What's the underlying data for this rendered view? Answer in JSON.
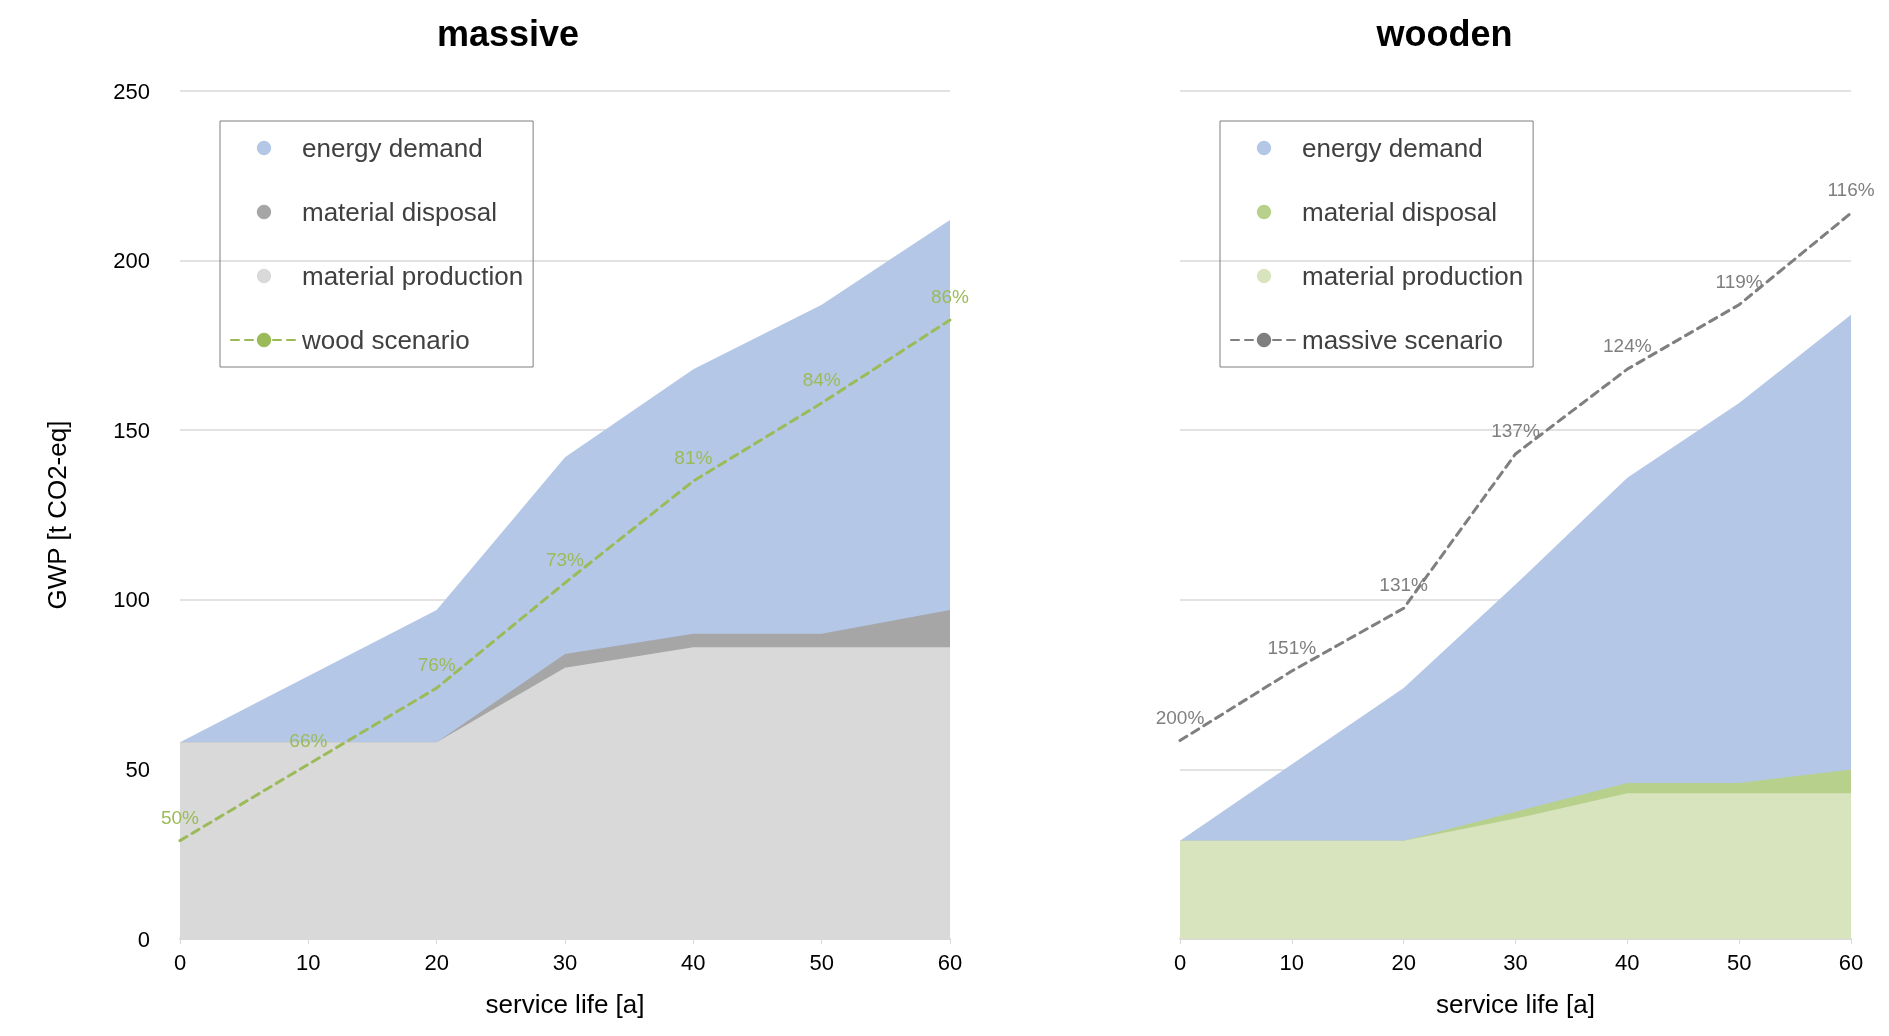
{
  "chart_data": [
    {
      "type": "area",
      "title": "massive",
      "xlabel": "service life [a]",
      "ylabel": "GWP [t CO2-eq]",
      "stacked": true,
      "grid": "y",
      "legend": "top left",
      "marker": "none",
      "x": [
        0,
        10,
        20,
        30,
        40,
        50,
        60
      ],
      "xlim": [
        0,
        60
      ],
      "xticks": [
        0,
        10,
        20,
        30,
        40,
        50,
        60
      ],
      "ylim": [
        0,
        250
      ],
      "yticks": [
        0,
        50,
        100,
        150,
        200,
        250
      ],
      "series": [
        {
          "name": "material production",
          "color": "#d9d9d9",
          "x": [
            0,
            20,
            30,
            40,
            50,
            60
          ],
          "values": [
            58,
            58,
            80,
            86,
            86,
            86
          ]
        },
        {
          "name": "material disposal",
          "color": "#a6a6a6",
          "x": [
            0,
            20,
            30,
            40,
            50,
            60
          ],
          "values": [
            0,
            0,
            4,
            4,
            4,
            11
          ]
        },
        {
          "name": "energy demand",
          "color": "#b4c7e7",
          "x": [
            0,
            20,
            30,
            40,
            50,
            60
          ],
          "values": [
            0,
            39,
            58,
            78,
            97,
            115
          ]
        },
        {
          "name": "wood scenario",
          "type": "line",
          "line_style": "dashed",
          "color": "#9bbb59",
          "values": [
            29,
            51.5,
            74,
            105,
            135,
            158,
            182.5
          ]
        }
      ],
      "annotations": [
        {
          "text": "50%",
          "x": 0,
          "y": 29
        },
        {
          "text": "66%",
          "x": 10,
          "y": 51.5
        },
        {
          "text": "76%",
          "x": 20,
          "y": 74
        },
        {
          "text": "73%",
          "x": 30,
          "y": 105
        },
        {
          "text": "81%",
          "x": 40,
          "y": 135
        },
        {
          "text": "84%",
          "x": 50,
          "y": 158
        },
        {
          "text": "86%",
          "x": 60,
          "y": 182.5
        }
      ]
    },
    {
      "type": "area",
      "title": "wooden",
      "xlabel": "service life [a]",
      "stacked": true,
      "grid": "y",
      "legend": "top left",
      "marker": "none",
      "tick_labels": "x",
      "x": [
        0,
        10,
        20,
        30,
        40,
        50,
        60
      ],
      "xlim": [
        0,
        60
      ],
      "xticks": [
        0,
        10,
        20,
        30,
        40,
        50,
        60
      ],
      "ylim": [
        0,
        250
      ],
      "yticks": [
        0,
        50,
        100,
        150,
        200,
        250
      ],
      "series": [
        {
          "name": "material production",
          "color": "#d7e4bd",
          "x": [
            0,
            20,
            30,
            40,
            50,
            60
          ],
          "values": [
            29,
            29,
            35.5,
            43,
            43,
            43
          ]
        },
        {
          "name": "material disposal",
          "color": "#b7d08c",
          "x": [
            0,
            20,
            30,
            40,
            50,
            60
          ],
          "values": [
            0,
            0,
            2,
            3,
            3,
            7
          ]
        },
        {
          "name": "energy demand",
          "color": "#b4c7e7",
          "x": [
            0,
            20,
            30,
            40,
            50,
            60
          ],
          "values": [
            0,
            45,
            67,
            90,
            112,
            134
          ]
        },
        {
          "name": "massive scenario",
          "type": "line",
          "line_style": "dashed",
          "color": "#7f7f7f",
          "values": [
            58.5,
            79,
            97.5,
            143,
            168,
            187,
            214
          ]
        }
      ],
      "annotations": [
        {
          "text": "200%",
          "x": 0,
          "y": 58.5
        },
        {
          "text": "151%",
          "x": 10,
          "y": 79
        },
        {
          "text": "131%",
          "x": 20,
          "y": 97.5
        },
        {
          "text": "137%",
          "x": 30,
          "y": 143
        },
        {
          "text": "124%",
          "x": 40,
          "y": 168
        },
        {
          "text": "119%",
          "x": 50,
          "y": 187
        },
        {
          "text": "116%",
          "x": 60,
          "y": 214
        }
      ]
    }
  ]
}
